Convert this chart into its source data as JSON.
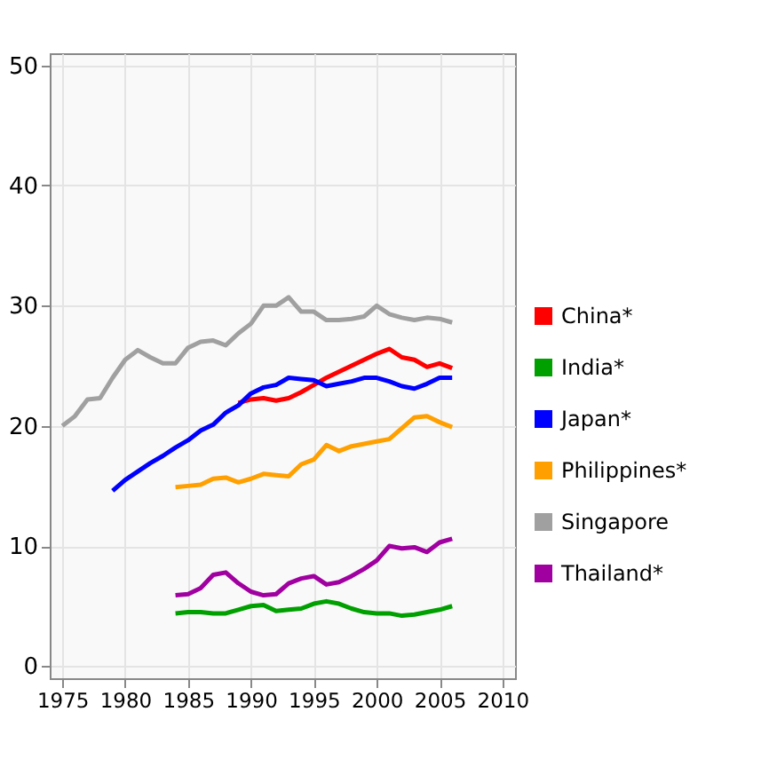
{
  "chart_data": {
    "type": "line",
    "xlim": [
      1974,
      2011
    ],
    "ylim": [
      -1,
      51
    ],
    "xticks": [
      1975,
      1980,
      1985,
      1990,
      1995,
      2000,
      2005,
      2010
    ],
    "yticks": [
      0,
      10,
      20,
      30,
      40,
      50
    ],
    "grid": true,
    "legend": "right",
    "series": [
      {
        "name": "China*",
        "color": "#ff0000",
        "x": [
          1989,
          1990,
          1991,
          1992,
          1993,
          1994,
          1995,
          1996,
          1997,
          1998,
          1999,
          2000,
          2001,
          2002,
          2003,
          2004,
          2005,
          2006
        ],
        "values": [
          21.9,
          22.2,
          22.3,
          22.1,
          22.3,
          22.8,
          23.4,
          24,
          24.5,
          25,
          25.5,
          26,
          26.4,
          25.7,
          25.5,
          24.9,
          25.2,
          24.8
        ]
      },
      {
        "name": "India*",
        "color": "#00a000",
        "x": [
          1984,
          1985,
          1986,
          1987,
          1988,
          1989,
          1990,
          1991,
          1992,
          1993,
          1994,
          1995,
          1996,
          1997,
          1998,
          1999,
          2000,
          2001,
          2002,
          2003,
          2004,
          2005,
          2006
        ],
        "values": [
          4.4,
          4.5,
          4.5,
          4.4,
          4.4,
          4.7,
          5,
          5.1,
          4.6,
          4.7,
          4.8,
          5.2,
          5.4,
          5.2,
          4.8,
          4.5,
          4.4,
          4.4,
          4.2,
          4.3,
          4.5,
          4.7,
          5
        ]
      },
      {
        "name": "Japan*",
        "color": "#0000ff",
        "x": [
          1979,
          1980,
          1981,
          1982,
          1983,
          1984,
          1985,
          1986,
          1987,
          1988,
          1989,
          1990,
          1991,
          1992,
          1993,
          1994,
          1995,
          1996,
          1997,
          1998,
          1999,
          2000,
          2001,
          2002,
          2003,
          2004,
          2005,
          2006
        ],
        "values": [
          14.6,
          15.5,
          16.2,
          16.9,
          17.5,
          18.2,
          18.8,
          19.6,
          20.1,
          21.1,
          21.7,
          22.7,
          23.2,
          23.4,
          24,
          23.9,
          23.8,
          23.3,
          23.5,
          23.7,
          24,
          24,
          23.7,
          23.3,
          23.1,
          23.5,
          24,
          24
        ]
      },
      {
        "name": "Philippines*",
        "color": "#ffa000",
        "x": [
          1984,
          1985,
          1986,
          1987,
          1988,
          1989,
          1990,
          1991,
          1992,
          1993,
          1994,
          1995,
          1996,
          1997,
          1998,
          1999,
          2000,
          2001,
          2002,
          2003,
          2004,
          2005,
          2006
        ],
        "values": [
          14.9,
          15,
          15.1,
          15.6,
          15.7,
          15.3,
          15.6,
          16,
          15.9,
          15.8,
          16.8,
          17.2,
          18.4,
          17.9,
          18.3,
          18.5,
          18.7,
          18.9,
          19.8,
          20.7,
          20.8,
          20.3,
          19.9
        ]
      },
      {
        "name": "Singapore",
        "color": "#a0a0a0",
        "x": [
          1975,
          1976,
          1977,
          1978,
          1979,
          1980,
          1981,
          1982,
          1983,
          1984,
          1985,
          1986,
          1987,
          1988,
          1989,
          1990,
          1991,
          1992,
          1993,
          1994,
          1995,
          1996,
          1997,
          1998,
          1999,
          2000,
          2001,
          2002,
          2003,
          2004,
          2005,
          2006
        ],
        "values": [
          20,
          20.8,
          22.2,
          22.3,
          24,
          25.5,
          26.3,
          25.7,
          25.2,
          25.2,
          26.5,
          27,
          27.1,
          26.7,
          27.7,
          28.5,
          30,
          30,
          30.7,
          29.5,
          29.5,
          28.8,
          28.8,
          28.9,
          29.1,
          30,
          29.3,
          29,
          28.8,
          29,
          28.9,
          28.6
        ]
      },
      {
        "name": "Thailand*",
        "color": "#a000a0",
        "x": [
          1984,
          1985,
          1986,
          1987,
          1988,
          1989,
          1990,
          1991,
          1992,
          1993,
          1994,
          1995,
          1996,
          1997,
          1998,
          1999,
          2000,
          2001,
          2002,
          2003,
          2004,
          2005,
          2006
        ],
        "values": [
          5.9,
          6,
          6.5,
          7.6,
          7.8,
          6.9,
          6.2,
          5.9,
          6,
          6.9,
          7.3,
          7.5,
          6.8,
          7,
          7.5,
          8.1,
          8.8,
          10,
          9.8,
          9.9,
          9.5,
          10.3,
          10.6
        ]
      }
    ]
  }
}
